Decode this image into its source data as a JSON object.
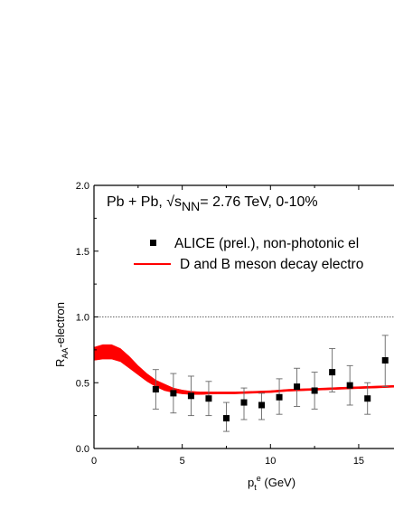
{
  "chart_data": {
    "type": "scatter",
    "annotation": {
      "part1": "Pb + Pb, √s",
      "subscript": "NN",
      "part2": "= 2.76 TeV, 0-10%"
    },
    "xlabel": {
      "p": "p",
      "sub": "t",
      "sup": "e",
      "rest": " (GeV)"
    },
    "ylabel": {
      "main": "R",
      "sub": "AA",
      "rest": "-electron"
    },
    "xlim": [
      0,
      17.0
    ],
    "ylim": [
      0,
      2.0
    ],
    "x_ticks": [
      0,
      5,
      10,
      15
    ],
    "y_ticks": [
      "0.0",
      "0.5",
      "1.0",
      "1.5",
      "2.0"
    ],
    "reference_line": 1.0,
    "legend": [
      {
        "label": "ALICE (prel.), non-photonic el",
        "marker": "square"
      },
      {
        "label": "D and B meson decay electro",
        "marker": "line"
      }
    ],
    "colors": {
      "data": "#000000",
      "band": "#ff0000",
      "error": "#666666"
    },
    "series": [
      {
        "name": "ALICE (prel.), non-photonic el",
        "points": [
          {
            "x": 3.5,
            "y": 0.45,
            "lo": 0.3,
            "hi": 0.6
          },
          {
            "x": 4.5,
            "y": 0.42,
            "lo": 0.27,
            "hi": 0.57
          },
          {
            "x": 5.5,
            "y": 0.4,
            "lo": 0.25,
            "hi": 0.55
          },
          {
            "x": 6.5,
            "y": 0.38,
            "lo": 0.25,
            "hi": 0.51
          },
          {
            "x": 7.5,
            "y": 0.23,
            "lo": 0.13,
            "hi": 0.35
          },
          {
            "x": 8.5,
            "y": 0.35,
            "lo": 0.22,
            "hi": 0.46
          },
          {
            "x": 9.5,
            "y": 0.33,
            "lo": 0.22,
            "hi": 0.42
          },
          {
            "x": 10.5,
            "y": 0.39,
            "lo": 0.26,
            "hi": 0.53
          },
          {
            "x": 11.5,
            "y": 0.47,
            "lo": 0.32,
            "hi": 0.61
          },
          {
            "x": 12.5,
            "y": 0.44,
            "lo": 0.3,
            "hi": 0.58
          },
          {
            "x": 13.5,
            "y": 0.58,
            "lo": 0.43,
            "hi": 0.76
          },
          {
            "x": 14.5,
            "y": 0.48,
            "lo": 0.33,
            "hi": 0.63
          },
          {
            "x": 15.5,
            "y": 0.38,
            "lo": 0.26,
            "hi": 0.5
          },
          {
            "x": 16.5,
            "y": 0.67,
            "lo": 0.47,
            "hi": 0.86
          }
        ]
      },
      {
        "name": "D and B meson decay electro",
        "band": {
          "x": [
            0,
            0.5,
            1.0,
            1.5,
            2.0,
            2.5,
            3.0,
            3.5,
            4.0,
            4.5,
            5.0,
            5.5,
            6.0,
            7.0,
            8.0,
            9.0,
            10.0,
            11.0,
            12.0,
            13.0,
            14.0,
            15.0,
            16.0,
            17.0
          ],
          "upper": [
            0.77,
            0.79,
            0.79,
            0.76,
            0.7,
            0.63,
            0.57,
            0.52,
            0.49,
            0.46,
            0.445,
            0.435,
            0.43,
            0.43,
            0.43,
            0.435,
            0.44,
            0.45,
            0.455,
            0.46,
            0.465,
            0.47,
            0.475,
            0.48
          ],
          "lower": [
            0.67,
            0.68,
            0.68,
            0.66,
            0.61,
            0.56,
            0.51,
            0.47,
            0.44,
            0.425,
            0.415,
            0.41,
            0.41,
            0.415,
            0.415,
            0.42,
            0.425,
            0.435,
            0.44,
            0.445,
            0.45,
            0.455,
            0.46,
            0.465
          ]
        }
      }
    ]
  }
}
